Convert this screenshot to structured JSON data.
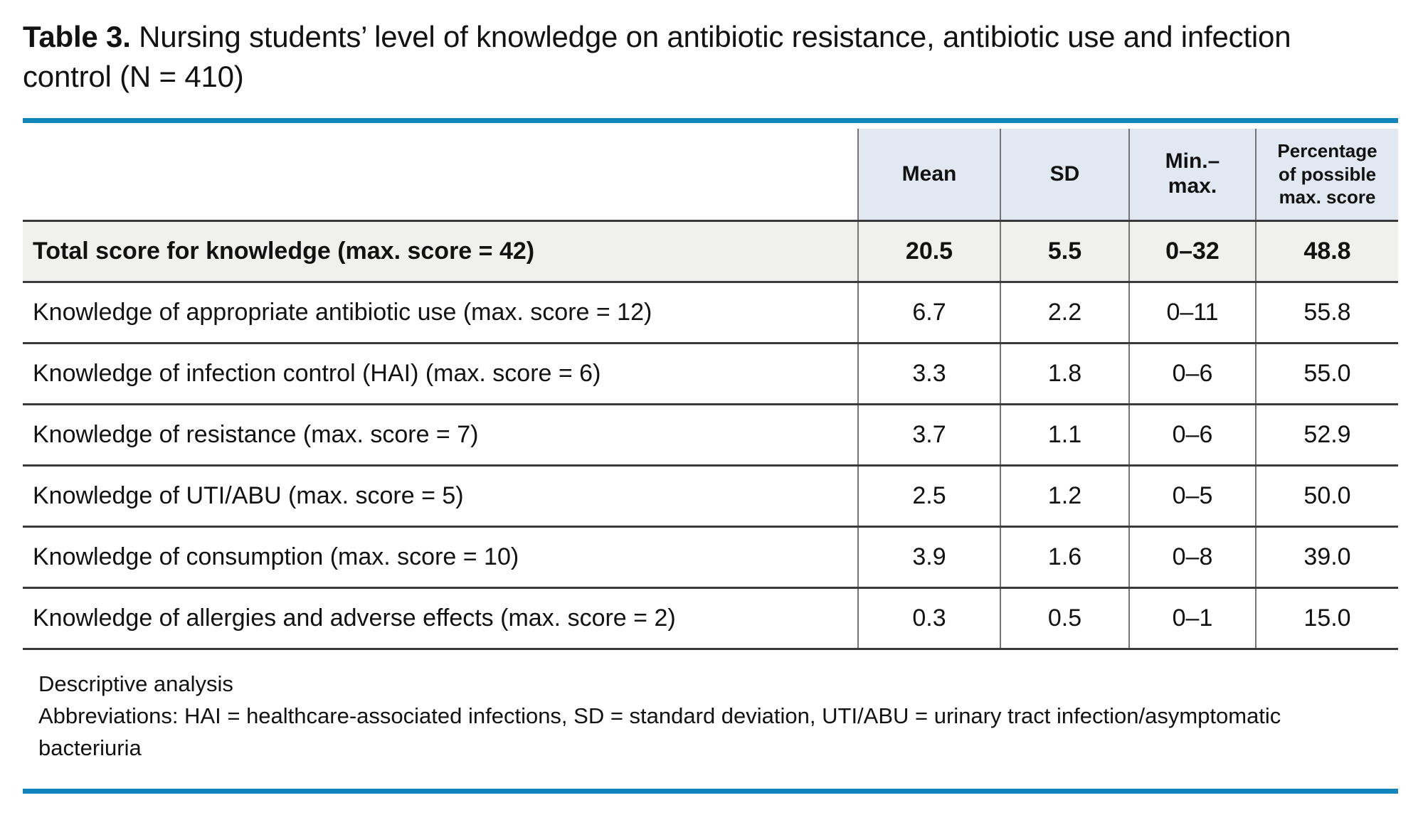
{
  "title": {
    "label": "Table 3.",
    "text": "Nursing students’ level of knowledge on antibiotic resistance, antibiotic use and infection control (N = 410)"
  },
  "table": {
    "headers": [
      "Mean",
      "SD",
      "Min.–max.",
      "Percentage of possible max. score"
    ],
    "rows": [
      {
        "label": "Total score for knowledge (max. score = 42)",
        "mean": "20.5",
        "sd": "5.5",
        "min_max": "0–32",
        "pct": "48.8"
      },
      {
        "label": "Knowledge of appropriate antibiotic use (max. score = 12)",
        "mean": "6.7",
        "sd": "2.2",
        "min_max": "0–11",
        "pct": "55.8"
      },
      {
        "label": "Knowledge of infection control (HAI) (max. score = 6)",
        "mean": "3.3",
        "sd": "1.8",
        "min_max": "0–6",
        "pct": "55.0"
      },
      {
        "label": "Knowledge of resistance (max. score = 7)",
        "mean": "3.7",
        "sd": "1.1",
        "min_max": "0–6",
        "pct": "52.9"
      },
      {
        "label": "Knowledge of UTI/ABU (max. score = 5)",
        "mean": "2.5",
        "sd": "1.2",
        "min_max": "0–5",
        "pct": "50.0"
      },
      {
        "label": "Knowledge of consumption (max. score = 10)",
        "mean": "3.9",
        "sd": "1.6",
        "min_max": "0–8",
        "pct": "39.0"
      },
      {
        "label": "Knowledge of allergies and adverse effects (max. score = 2)",
        "mean": "0.3",
        "sd": "0.5",
        "min_max": "0–1",
        "pct": "15.0"
      }
    ]
  },
  "footnotes": {
    "note": "Descriptive analysis",
    "abbreviations": "Abbreviations: HAI = healthcare-associated infections, SD = standard deviation, UTI/ABU = urinary tract infection/asymptomatic bacteriuria"
  },
  "colors": {
    "accent_blue": "#1285bd",
    "header_bg": "#e2e8f2",
    "total_row_bg": "#f0f1ef",
    "border_dark": "#3a3a3a",
    "border_gray": "#757575"
  }
}
